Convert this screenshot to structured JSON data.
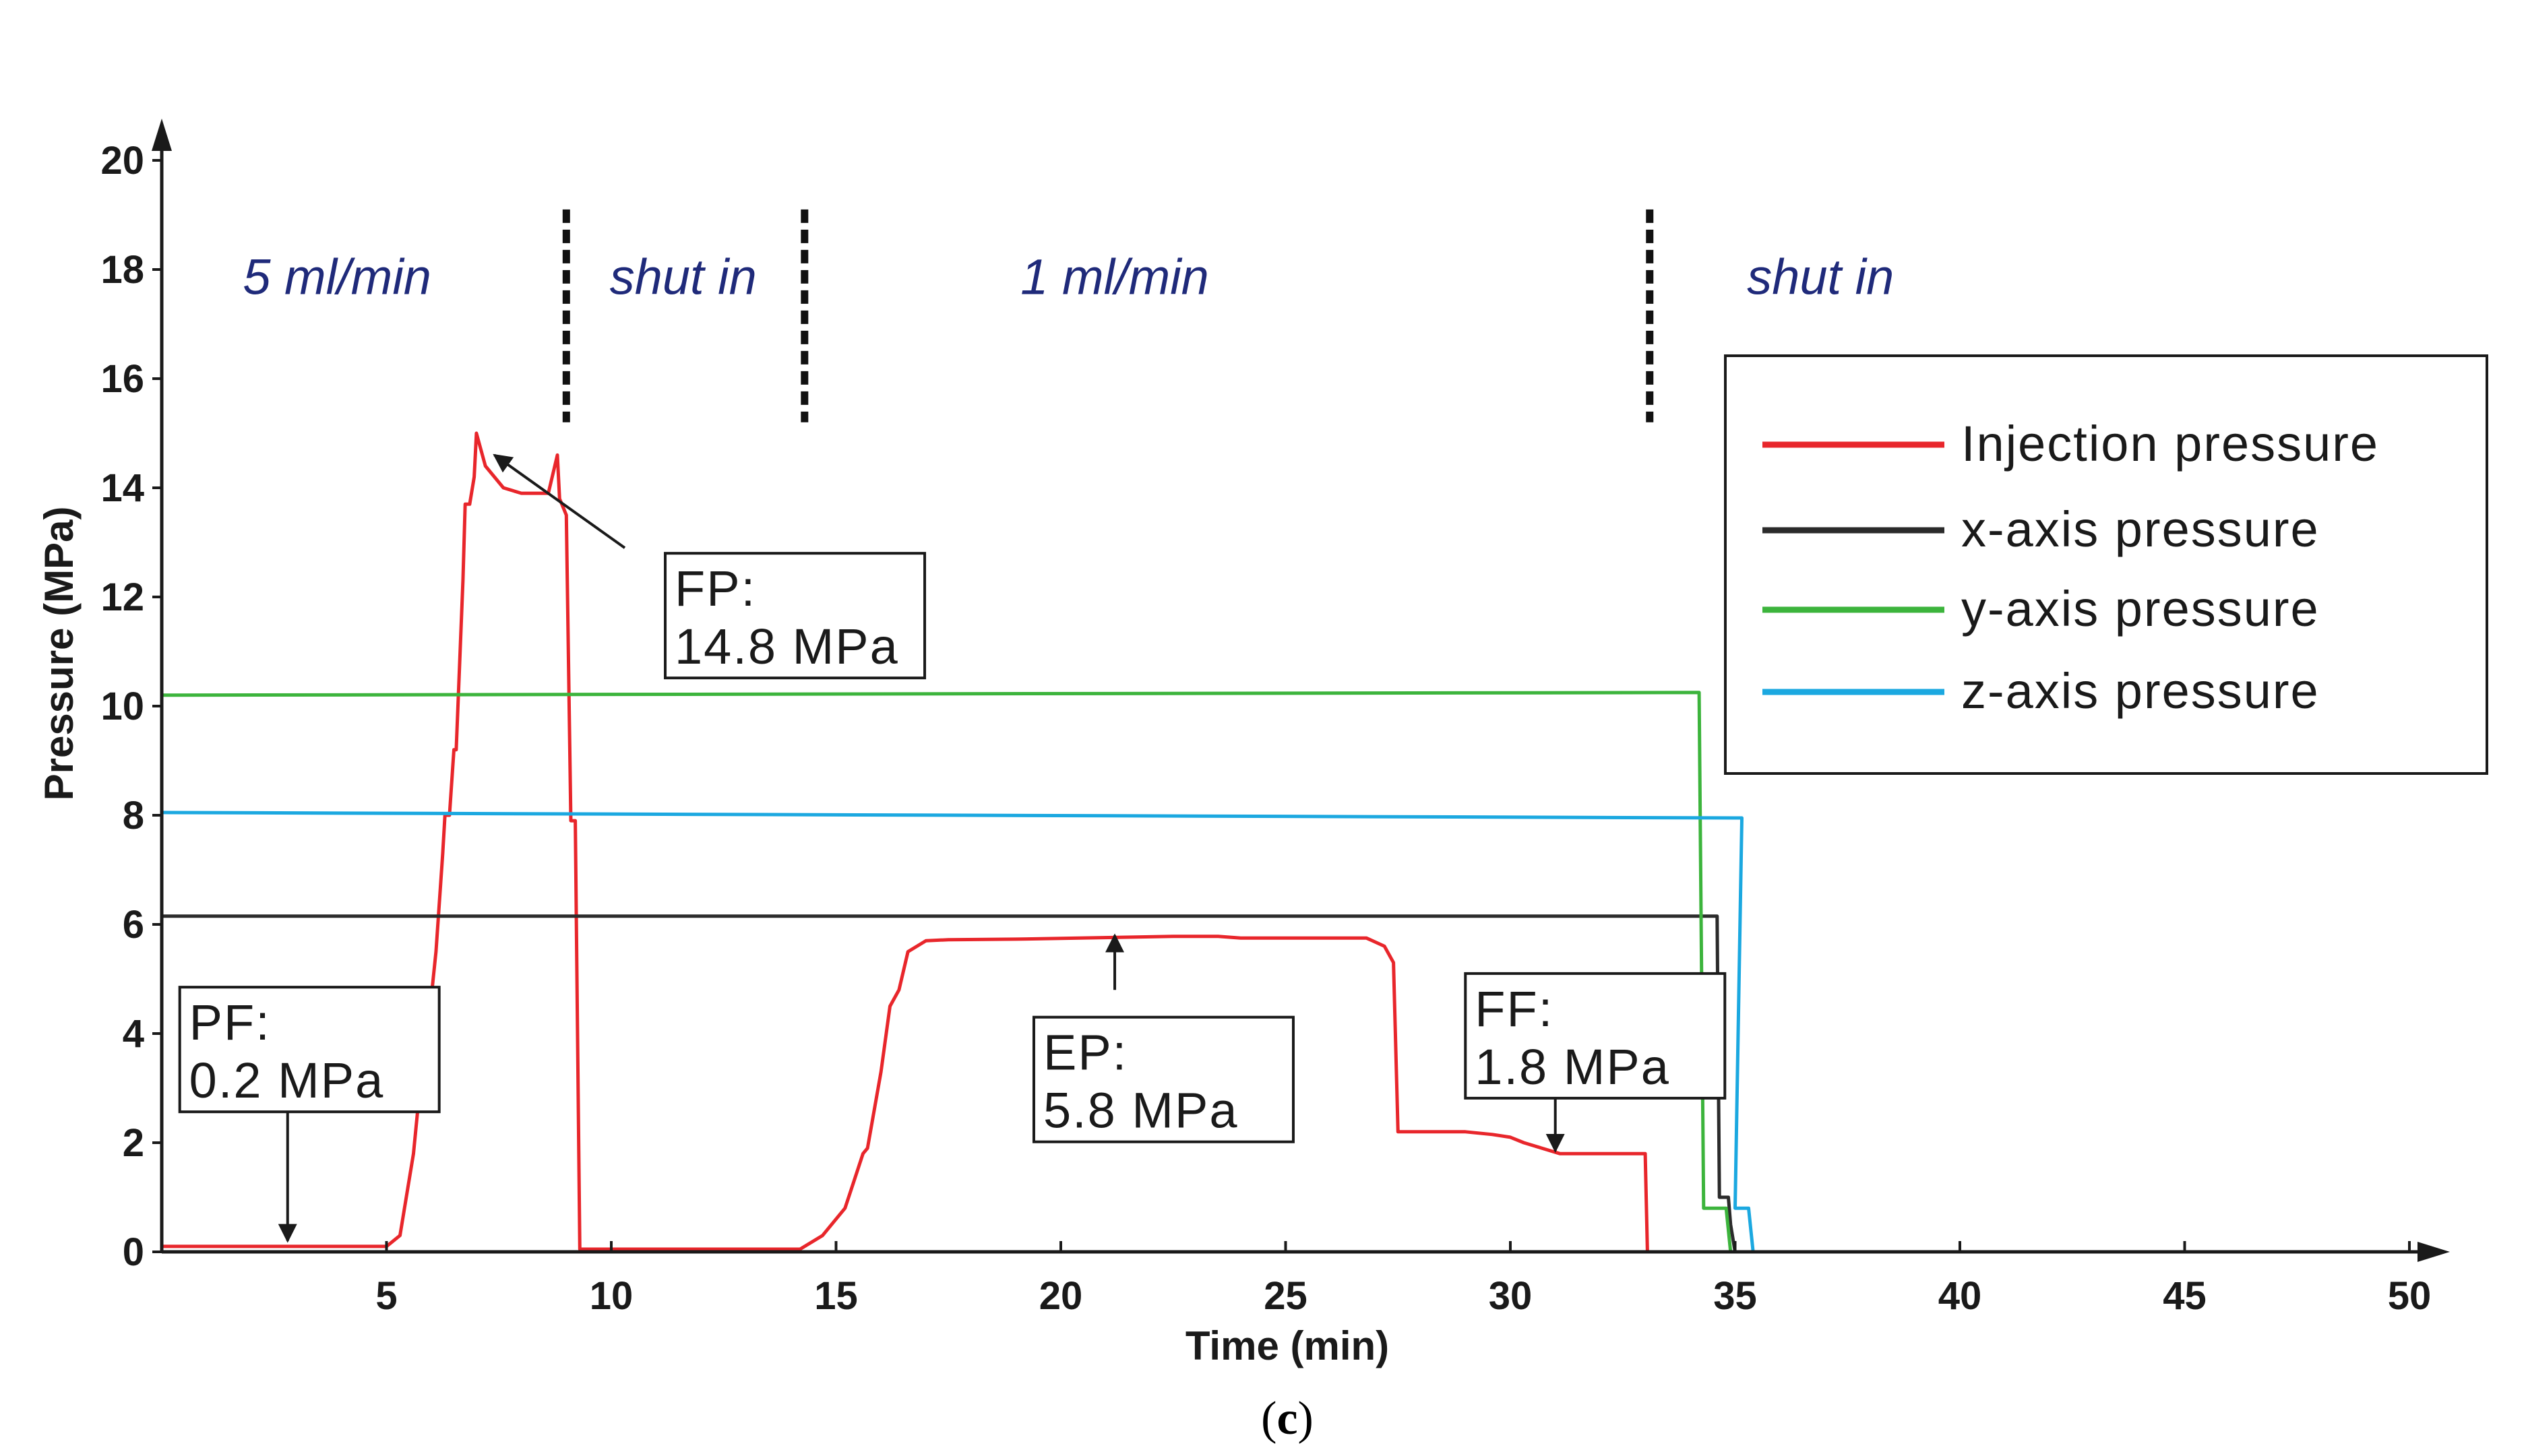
{
  "chart_data": {
    "type": "line",
    "xlabel": "Time (min)",
    "ylabel": "Pressure (MPa)",
    "xlim": [
      0,
      50
    ],
    "ylim": [
      0,
      20
    ],
    "x_ticks": [
      5,
      10,
      15,
      20,
      25,
      30,
      35,
      40,
      45,
      50
    ],
    "y_ticks": [
      0,
      2,
      4,
      6,
      8,
      10,
      12,
      14,
      16,
      18,
      20
    ],
    "caption_letter": "c",
    "caption_open": "(",
    "caption_close": ")",
    "phases": [
      {
        "label": "5 ml/min",
        "x": 3.9
      },
      {
        "label": "shut in",
        "x": 11.6
      },
      {
        "label": "1 ml/min",
        "x": 21.2
      },
      {
        "label": "shut in",
        "x": 36.9
      }
    ],
    "phase_dividers": [
      9.0,
      14.3,
      33.1
    ],
    "legend": {
      "position": "top-right",
      "entries": [
        {
          "name": "Injection  pressure",
          "color": "#e8262b"
        },
        {
          "name": "x-axis pressure",
          "color": "#2b2b2b"
        },
        {
          "name": "y-axis pressure",
          "color": "#3cb43c"
        },
        {
          "name": "z-axis pressure",
          "color": "#1ba8e0"
        }
      ]
    },
    "series": [
      {
        "name": "Injection  pressure",
        "color": "#e8262b",
        "points": [
          [
            0,
            0.1
          ],
          [
            5.0,
            0.1
          ],
          [
            5.3,
            0.3
          ],
          [
            5.6,
            1.8
          ],
          [
            5.8,
            3.5
          ],
          [
            5.9,
            4.7
          ],
          [
            6.0,
            4.7
          ],
          [
            6.1,
            5.5
          ],
          [
            6.25,
            7.3
          ],
          [
            6.3,
            8.0
          ],
          [
            6.4,
            8.0
          ],
          [
            6.5,
            9.2
          ],
          [
            6.55,
            9.2
          ],
          [
            6.7,
            12.3
          ],
          [
            6.75,
            13.7
          ],
          [
            6.85,
            13.7
          ],
          [
            6.95,
            14.2
          ],
          [
            7.0,
            15.0
          ],
          [
            7.2,
            14.4
          ],
          [
            7.6,
            14.0
          ],
          [
            8.0,
            13.9
          ],
          [
            8.6,
            13.9
          ],
          [
            8.8,
            14.6
          ],
          [
            8.85,
            13.8
          ],
          [
            9.0,
            13.5
          ],
          [
            9.1,
            7.9
          ],
          [
            9.2,
            7.9
          ],
          [
            9.3,
            0.05
          ],
          [
            14.2,
            0.05
          ],
          [
            14.7,
            0.3
          ],
          [
            15.2,
            0.8
          ],
          [
            15.4,
            1.3
          ],
          [
            15.6,
            1.8
          ],
          [
            15.7,
            1.9
          ],
          [
            16.0,
            3.3
          ],
          [
            16.2,
            4.5
          ],
          [
            16.4,
            4.8
          ],
          [
            16.6,
            5.5
          ],
          [
            17.0,
            5.7
          ],
          [
            17.5,
            5.72
          ],
          [
            19.0,
            5.73
          ],
          [
            22.5,
            5.78
          ],
          [
            23.5,
            5.78
          ],
          [
            24.0,
            5.75
          ],
          [
            26.8,
            5.75
          ],
          [
            27.2,
            5.6
          ],
          [
            27.4,
            5.3
          ],
          [
            27.5,
            2.2
          ],
          [
            29.0,
            2.2
          ],
          [
            29.6,
            2.15
          ],
          [
            30.0,
            2.1
          ],
          [
            30.3,
            2.0
          ],
          [
            30.7,
            1.9
          ],
          [
            31.1,
            1.8
          ],
          [
            33.0,
            1.8
          ],
          [
            33.05,
            0
          ]
        ]
      },
      {
        "name": "x-axis pressure",
        "color": "#2b2b2b",
        "points": [
          [
            0,
            6.15
          ],
          [
            34.6,
            6.15
          ],
          [
            34.65,
            1.0
          ],
          [
            34.85,
            1.0
          ],
          [
            34.9,
            0.5
          ],
          [
            35.0,
            0
          ]
        ]
      },
      {
        "name": "y-axis pressure",
        "color": "#3cb43c",
        "points": [
          [
            0,
            10.2
          ],
          [
            34.2,
            10.25
          ],
          [
            34.3,
            0.8
          ],
          [
            34.8,
            0.8
          ],
          [
            34.9,
            0
          ]
        ]
      },
      {
        "name": "z-axis pressure",
        "color": "#1ba8e0",
        "points": [
          [
            0,
            8.05
          ],
          [
            35.0,
            7.95
          ],
          [
            35.15,
            7.95
          ],
          [
            35.0,
            0.8
          ],
          [
            35.3,
            0.8
          ],
          [
            35.4,
            0
          ]
        ]
      }
    ],
    "annotations": [
      {
        "name": "fp-annotation",
        "line1": "FP:",
        "line2": "14.8 MPa",
        "box_x": 11.2,
        "box_y": 12.8,
        "arrow_from": [
          10.3,
          12.9
        ],
        "arrow_to": [
          7.4,
          14.6
        ]
      },
      {
        "name": "pf-annotation",
        "line1": "PF:",
        "line2": "0.2 MPa",
        "box_x": 0.4,
        "box_y": 4.85,
        "arrow_from": [
          2.8,
          2.6
        ],
        "arrow_to": [
          2.8,
          0.2
        ]
      },
      {
        "name": "ep-annotation",
        "line1": "EP:",
        "line2": "5.8 MPa",
        "box_x": 19.4,
        "box_y": 4.3,
        "arrow_from": [
          21.2,
          4.8
        ],
        "arrow_to": [
          21.2,
          5.8
        ]
      },
      {
        "name": "ff-annotation",
        "line1": "FF:",
        "line2": "1.8 MPa",
        "box_x": 29.0,
        "box_y": 5.1,
        "arrow_from": [
          31.0,
          3.2
        ],
        "arrow_to": [
          31.0,
          1.85
        ]
      }
    ]
  }
}
